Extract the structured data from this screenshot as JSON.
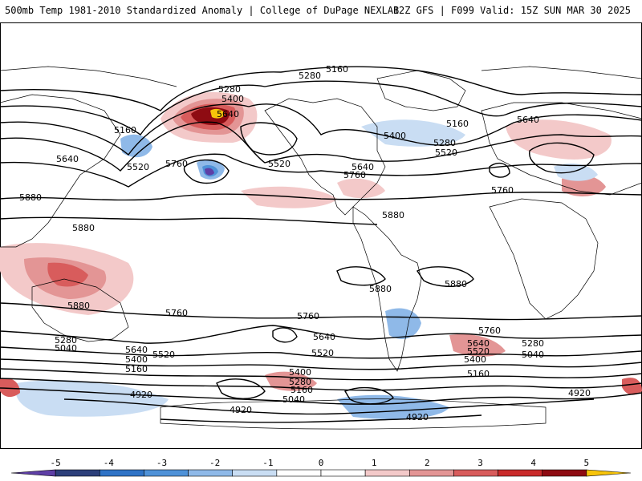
{
  "header": {
    "left_title": "500mb Temp 1981-2010 Standardized Anomaly | College of DuPage NEXLAB",
    "right_title": "12Z GFS | F099 Valid: 15Z SUN MAR 30 2025"
  },
  "colorbar": {
    "ticks": [
      "-5",
      "-4",
      "-3",
      "-2",
      "-1",
      "0",
      "1",
      "2",
      "3",
      "4",
      "5"
    ],
    "colors": [
      "#5e3fa6",
      "#2c3f7a",
      "#2f73c6",
      "#4f92d8",
      "#8fb9e8",
      "#c9ddf3",
      "#ffffff",
      "#ffffff",
      "#f3c9c9",
      "#e39595",
      "#d85c5c",
      "#c92a2a",
      "#8e0b12",
      "#f7c40a"
    ]
  },
  "contour_labels": [
    "5160",
    "5280",
    "5400",
    "5640",
    "5160",
    "5520",
    "5640",
    "5760",
    "5280",
    "5520",
    "5160",
    "5400",
    "5640",
    "5760",
    "5280",
    "5520",
    "5640",
    "5760",
    "5880",
    "5880",
    "5880",
    "5880",
    "5880",
    "5760",
    "5760",
    "5640",
    "5520",
    "5280",
    "5040",
    "5640",
    "5520",
    "5400",
    "5160",
    "5640",
    "5520",
    "5400",
    "5280",
    "5160",
    "5040",
    "4920",
    "4920",
    "5760",
    "5640",
    "5520",
    "5400",
    "5280",
    "5040",
    "5160",
    "4920",
    "4920",
    "5280",
    "5040",
    "5400",
    "5640",
    "5760",
    "5160",
    "5880",
    "5640",
    "5400"
  ],
  "colors": {
    "warm_extreme": "#f7c40a",
    "cold_extreme": "#5e3fa6",
    "contour": "#000000",
    "land_outline": "#000000"
  }
}
